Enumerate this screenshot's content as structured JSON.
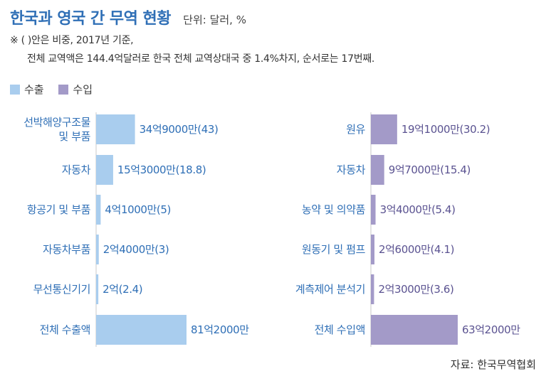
{
  "header": {
    "title": "한국과 영국 간 무역 현황",
    "unit": "단위: 달러, %"
  },
  "notes": {
    "line1": "※ ( )안은 비중, 2017년 기준,",
    "line2": "전체 교역액은 144.4억달러로 한국 전체 교역상대국 중 1.4%차지, 순서로는 17번째."
  },
  "source": "자료: 한국무역협회",
  "colors": {
    "export": "#a9cdee",
    "import": "#a39ac8",
    "label": "#2f6fb6",
    "value_export": "#2f6fb6",
    "value_import": "#5b5391"
  },
  "chart_data": [
    {
      "type": "bar",
      "orientation": "horizontal",
      "series": [
        {
          "name": "수출"
        }
      ],
      "categories": [
        [
          "선박해양구조물",
          "및 부품"
        ],
        [
          "자동차"
        ],
        [
          "항공기 및 부품"
        ],
        [
          "자동차부품"
        ],
        [
          "무선통신기기"
        ],
        [
          "전체 수출액"
        ]
      ],
      "values": [
        3490000000,
        1530000000,
        410000000,
        240000000,
        200000000,
        8120000000
      ],
      "value_labels": [
        "34억9000만(43)",
        "15억3000만(18.8)",
        "4억1000만(5)",
        "2억4000만(3)",
        "2억(2.4)",
        "81억2000만"
      ],
      "shares": [
        43,
        18.8,
        5,
        3,
        2.4,
        null
      ]
    },
    {
      "type": "bar",
      "orientation": "horizontal",
      "series": [
        {
          "name": "수입"
        }
      ],
      "categories": [
        [
          "원유"
        ],
        [
          "자동차"
        ],
        [
          "농약 및 의약품"
        ],
        [
          "원동기 및 펌프"
        ],
        [
          "계측제어 분석기"
        ],
        [
          "전체 수입액"
        ]
      ],
      "values": [
        1910000000,
        970000000,
        340000000,
        260000000,
        230000000,
        6320000000
      ],
      "value_labels": [
        "19억1000만(30.2)",
        "9억7000만(15.4)",
        "3억4000만(5.4)",
        "2억6000만(4.1)",
        "2억3000만(3.6)",
        "63억2000만"
      ],
      "shares": [
        30.2,
        15.4,
        5.4,
        4.1,
        3.6,
        null
      ]
    }
  ]
}
